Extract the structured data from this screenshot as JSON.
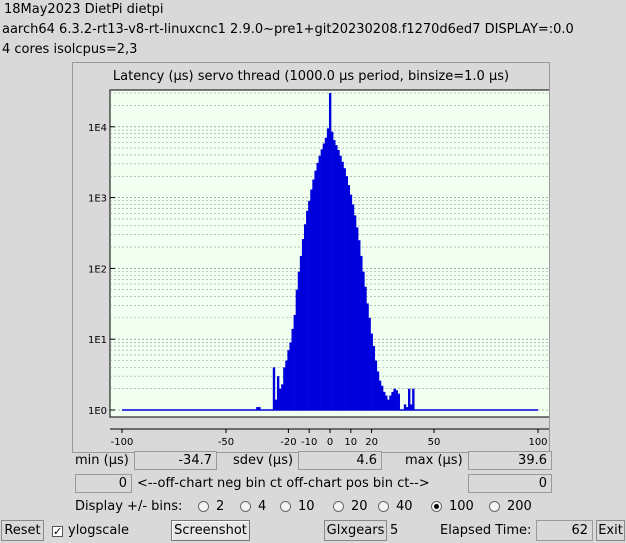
{
  "header": {
    "line1": "18May2023 DietPi dietpi",
    "line2": " aarch64  6.3.2-rt13-v8-rt-linuxcnc1  2.9.0~pre1+git20230208.f1270d6ed7  DISPLAY=:0.0",
    "line3": " 4 cores  isolcpus=2,3"
  },
  "chart_data": {
    "type": "bar",
    "title": "Latency (µs) servo thread (1000.0 µs period, binsize=1.0 µs)",
    "x_ticks": [
      -100,
      -50,
      -20,
      -10,
      0,
      10,
      20,
      50,
      100
    ],
    "x_tick_labels": [
      "-100",
      "-50",
      "-20",
      "-10",
      "0",
      "10",
      "20",
      "50",
      "100"
    ],
    "y_scale": "log",
    "y_ticks": [
      1,
      10,
      100,
      1000,
      10000
    ],
    "y_tick_labels": [
      "1E0",
      "1E1",
      "1E2",
      "1E3",
      "1E4"
    ],
    "xlim": [
      -100,
      100
    ],
    "ylim": [
      1,
      30000
    ],
    "grid": true,
    "bar_color": "#0000dd",
    "bins": {
      "x": [
        -35,
        -34,
        -27,
        -26,
        -25,
        -24,
        -23,
        -22,
        -21,
        -20,
        -19,
        -18,
        -17,
        -16,
        -15,
        -14,
        -13,
        -12,
        -11,
        -10,
        -9,
        -8,
        -7,
        -6,
        -5,
        -4,
        -3,
        -2,
        -1,
        0,
        1,
        2,
        3,
        4,
        5,
        6,
        7,
        8,
        9,
        10,
        11,
        12,
        13,
        14,
        15,
        16,
        17,
        18,
        19,
        20,
        21,
        22,
        23,
        24,
        25,
        26,
        27,
        28,
        29,
        30,
        31,
        32,
        33,
        36,
        37,
        38,
        39,
        40
      ],
      "y": [
        1.1,
        1.1,
        4,
        1.4,
        3,
        2,
        2.3,
        4,
        5,
        7,
        9,
        14,
        22,
        50,
        90,
        150,
        260,
        420,
        650,
        900,
        1300,
        1800,
        2400,
        3100,
        3900,
        4800,
        5800,
        7000,
        9500,
        30000,
        8500,
        6500,
        5500,
        4700,
        3900,
        3200,
        2600,
        2000,
        1500,
        1100,
        800,
        560,
        380,
        250,
        150,
        90,
        55,
        32,
        20,
        12,
        8,
        5,
        3.5,
        2.6,
        2.2,
        1.8,
        1.6,
        1.4,
        1.6,
        1.8,
        2,
        1.9,
        1.7,
        1.2,
        1.1,
        2,
        1.2,
        2
      ]
    }
  },
  "stats": {
    "min_label": "min (µs)",
    "min_value": "-34.7",
    "sdev_label": "sdev (µs)",
    "sdev_value": "4.6",
    "max_label": "max (µs)",
    "max_value": "39.6",
    "neg_value": "0",
    "offchart_label": "<--off-chart neg bin ct   off-chart pos bin ct-->",
    "pos_value": "0"
  },
  "bins_selector": {
    "label": "Display +/- bins:",
    "options": [
      "2",
      "4",
      "10",
      "20",
      "40",
      "100",
      "200"
    ],
    "selected": "100"
  },
  "footer": {
    "reset_label": "Reset",
    "ylogscale_label": "ylogscale",
    "ylogscale_checked": "✓",
    "screenshot_label": "Screenshot",
    "glxgears_label": "Glxgears",
    "glxgears_count": "5",
    "elapsed_label": "Elapsed Time:",
    "elapsed_value": "62",
    "exit_label": "Exit"
  }
}
